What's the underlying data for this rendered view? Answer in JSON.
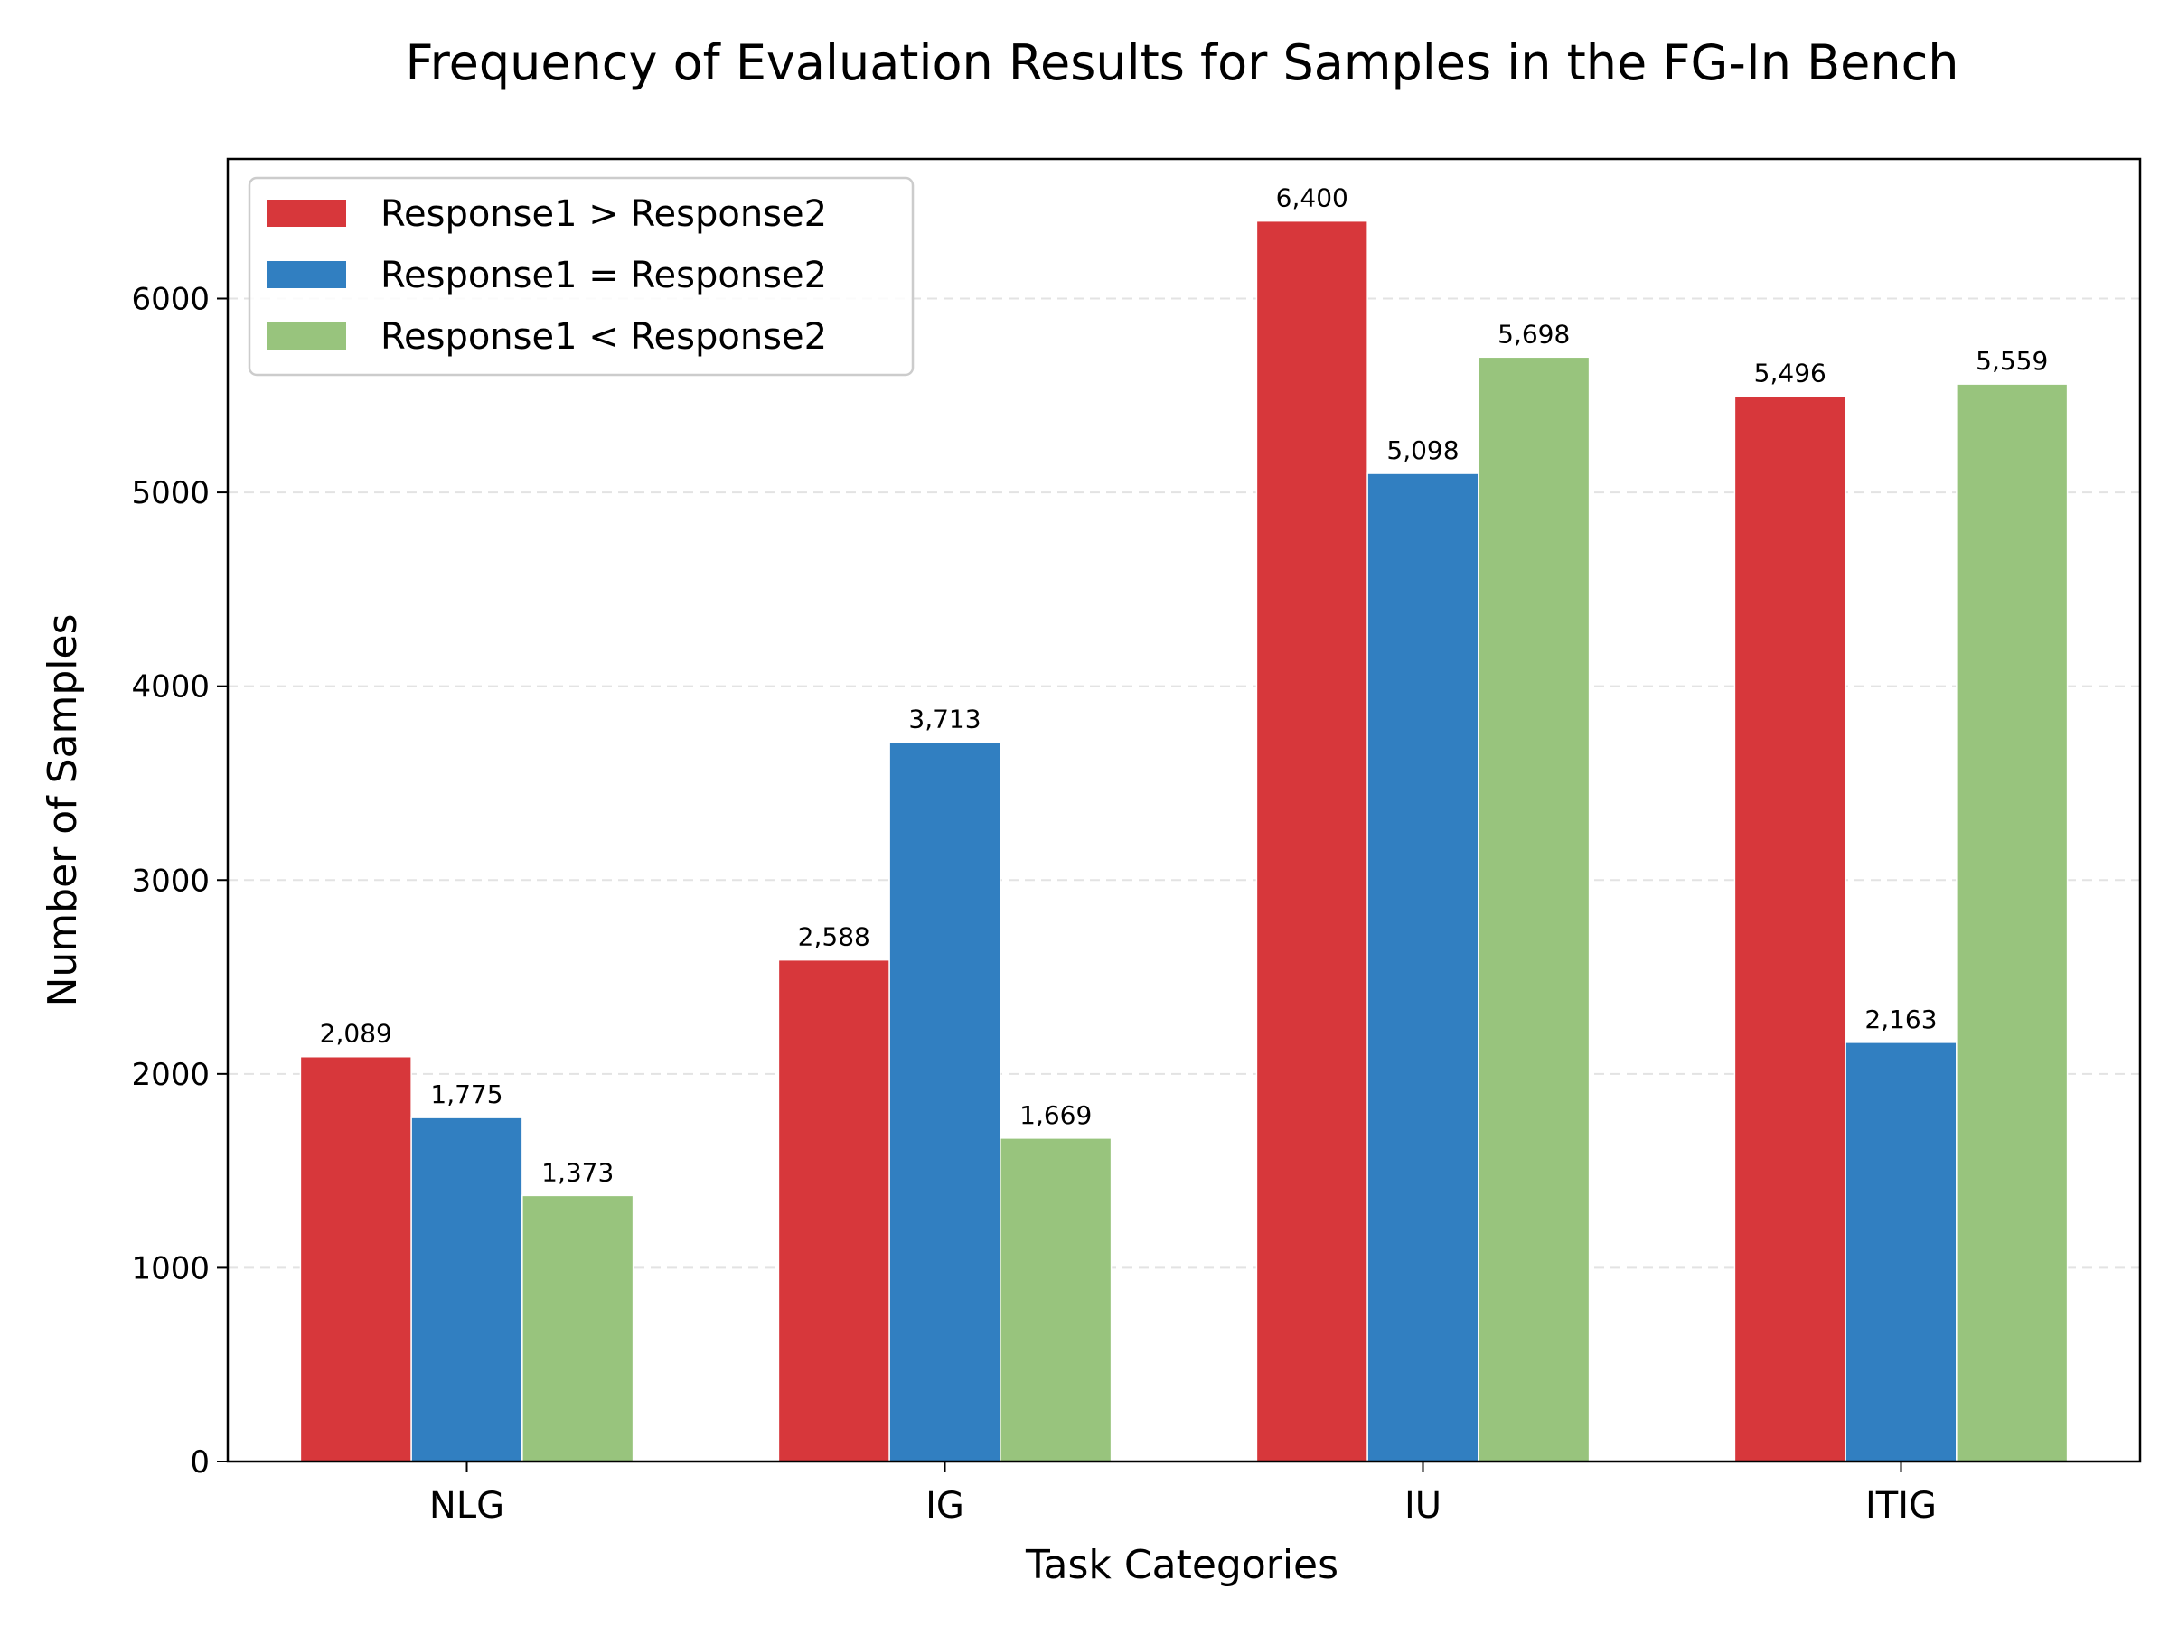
{
  "chart_data": {
    "type": "bar",
    "title": "Frequency of Evaluation Results for Samples in the FG-In Bench",
    "xlabel": "Task Categories",
    "ylabel": "Number of Samples",
    "categories": [
      "NLG",
      "IG",
      "IU",
      "ITIG"
    ],
    "series": [
      {
        "name": "Response1 > Response2",
        "color": "#d7373b",
        "values": [
          2089,
          2588,
          6400,
          5496
        ],
        "labels": [
          "2,089",
          "2,588",
          "6,400",
          "5,496"
        ]
      },
      {
        "name": "Response1 = Response2",
        "color": "#317fc1",
        "values": [
          1775,
          3713,
          5098,
          2163
        ],
        "labels": [
          "1,775",
          "3,713",
          "5,098",
          "2,163"
        ]
      },
      {
        "name": "Response1 < Response2",
        "color": "#98c47d",
        "values": [
          1373,
          1669,
          5698,
          5559
        ],
        "labels": [
          "1,373",
          "1,669",
          "5,698",
          "5,559"
        ]
      }
    ],
    "ylim": [
      0,
      6720
    ],
    "yticks": [
      0,
      1000,
      2000,
      3000,
      4000,
      5000,
      6000
    ],
    "ytick_labels": [
      "0",
      "1000",
      "2000",
      "3000",
      "4000",
      "5000",
      "6000"
    ],
    "grid": "horizontal dashed",
    "legend_position": "top-left"
  }
}
